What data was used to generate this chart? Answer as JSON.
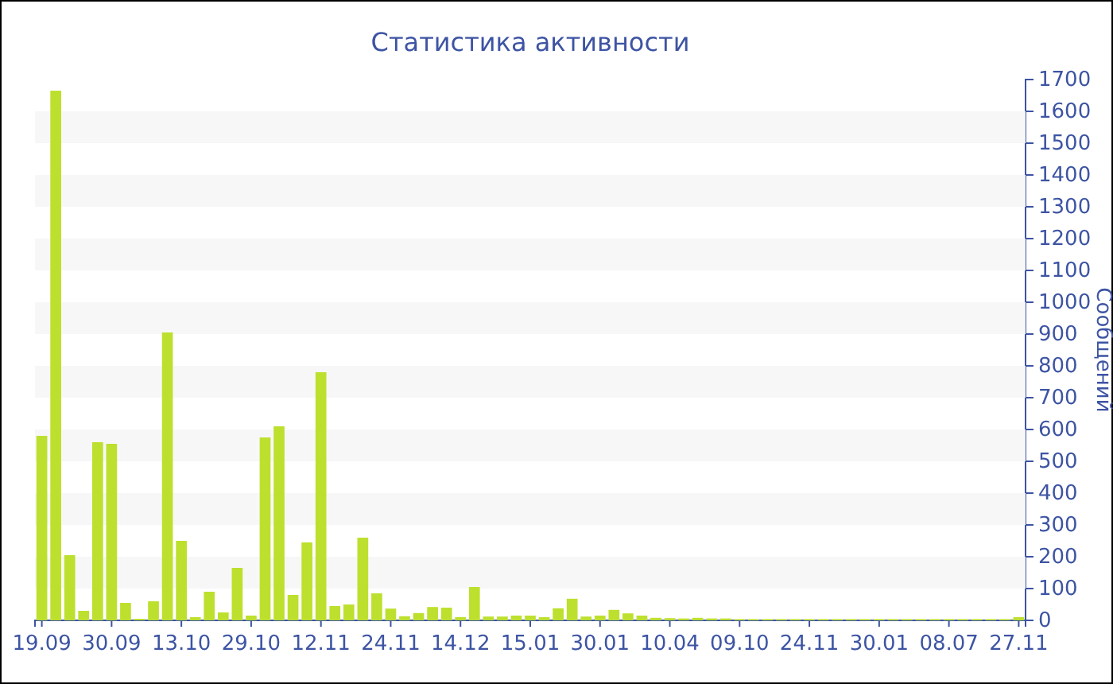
{
  "chart_data": {
    "type": "bar",
    "title": "Статистика активности",
    "ylabel": "Сообщений",
    "categories": [
      "19.09",
      null,
      null,
      null,
      null,
      "30.09",
      null,
      null,
      null,
      null,
      "13.10",
      null,
      null,
      null,
      null,
      "29.10",
      null,
      null,
      null,
      null,
      "12.11",
      null,
      null,
      null,
      null,
      "24.11",
      null,
      null,
      null,
      null,
      "14.12",
      null,
      null,
      null,
      null,
      "15.01",
      null,
      null,
      null,
      null,
      "30.01",
      null,
      null,
      null,
      null,
      "10.04",
      null,
      null,
      null,
      null,
      "09.10",
      null,
      null,
      null,
      null,
      "24.11",
      null,
      null,
      null,
      null,
      "30.01",
      null,
      null,
      null,
      null,
      "08.07",
      null,
      null,
      null,
      null,
      "27.11"
    ],
    "values": [
      580,
      1665,
      205,
      30,
      560,
      555,
      55,
      5,
      60,
      905,
      250,
      10,
      90,
      25,
      165,
      15,
      575,
      610,
      80,
      245,
      780,
      45,
      50,
      260,
      85,
      37,
      13,
      23,
      42,
      40,
      10,
      105,
      12,
      12,
      15,
      15,
      10,
      38,
      68,
      12,
      15,
      33,
      22,
      15,
      8,
      7,
      6,
      8,
      6,
      6,
      4,
      4,
      4,
      4,
      4,
      4,
      4,
      4,
      4,
      4,
      4,
      4,
      4,
      4,
      4,
      4,
      4,
      4,
      4,
      4,
      10
    ],
    "color": "#bde02e",
    "ylim": [
      0,
      1700
    ],
    "yticks": [
      0,
      100,
      200,
      300,
      400,
      500,
      600,
      700,
      800,
      900,
      1000,
      1100,
      1200,
      1300,
      1400,
      1500,
      1600,
      1700
    ],
    "bands": [
      {
        "axis": "y",
        "from": 100,
        "to": 200,
        "color": "#f7f7f7"
      },
      {
        "axis": "y",
        "from": 300,
        "to": 400,
        "color": "#f7f7f7"
      },
      {
        "axis": "y",
        "from": 500,
        "to": 600,
        "color": "#f7f7f7"
      },
      {
        "axis": "y",
        "from": 700,
        "to": 800,
        "color": "#f7f7f7"
      },
      {
        "axis": "y",
        "from": 900,
        "to": 1000,
        "color": "#f7f7f7"
      },
      {
        "axis": "y",
        "from": 1100,
        "to": 1200,
        "color": "#f7f7f7"
      },
      {
        "axis": "y",
        "from": 1300,
        "to": 1400,
        "color": "#f7f7f7"
      },
      {
        "axis": "y",
        "from": 1500,
        "to": 1600,
        "color": "#f7f7f7"
      }
    ]
  }
}
